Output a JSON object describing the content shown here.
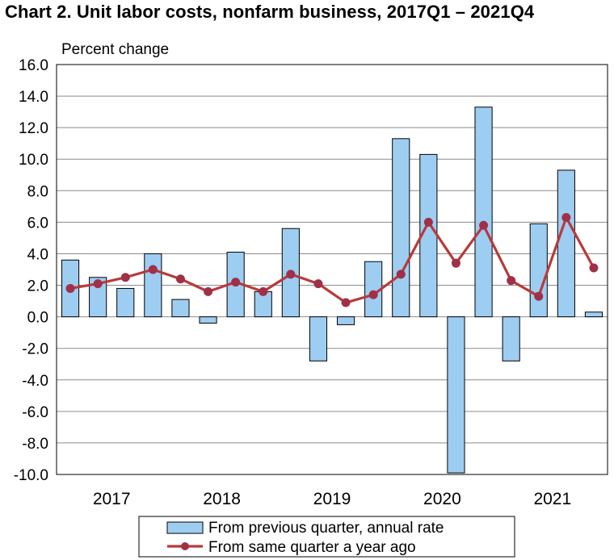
{
  "chart_data": {
    "type": "bar",
    "title": "Chart  2. Unit labor costs, nonfarm business, 2017Q1 – 2021Q4",
    "ylabel": "Percent change",
    "ylim": [
      -10,
      16
    ],
    "yticks": [
      "16.0",
      "14.0",
      "12.0",
      "10.0",
      "8.0",
      "6.0",
      "4.0",
      "2.0",
      "0.0",
      "-2.0",
      "-4.0",
      "-6.0",
      "-8.0",
      "-10.0"
    ],
    "ytick_values": [
      16,
      14,
      12,
      10,
      8,
      6,
      4,
      2,
      0,
      -2,
      -4,
      -6,
      -8,
      -10
    ],
    "year_labels": [
      "2017",
      "2018",
      "2019",
      "2020",
      "2021"
    ],
    "quarters": [
      "2017Q1",
      "2017Q2",
      "2017Q3",
      "2017Q4",
      "2018Q1",
      "2018Q2",
      "2018Q3",
      "2018Q4",
      "2019Q1",
      "2019Q2",
      "2019Q3",
      "2019Q4",
      "2020Q1",
      "2020Q2",
      "2020Q3",
      "2020Q4",
      "2021Q1",
      "2021Q2",
      "2021Q3",
      "2021Q4"
    ],
    "grid": "horizontal",
    "legend_position": "bottom",
    "series": [
      {
        "name": "From previous quarter, annual rate",
        "kind": "bar",
        "color": "#9ecdf2",
        "values": [
          3.6,
          2.5,
          1.8,
          4.0,
          1.1,
          -0.4,
          4.1,
          1.6,
          5.6,
          -2.8,
          -0.5,
          3.5,
          11.3,
          10.3,
          -9.9,
          13.3,
          -2.8,
          5.9,
          9.3,
          0.3
        ]
      },
      {
        "name": "From same quarter a year ago",
        "kind": "line",
        "color": "#b83a3a",
        "marker_color": "#a03048",
        "values": [
          1.8,
          2.1,
          2.5,
          3.0,
          2.4,
          1.6,
          2.2,
          1.6,
          2.7,
          2.1,
          0.9,
          1.4,
          2.7,
          6.0,
          3.4,
          5.8,
          2.3,
          1.3,
          6.3,
          3.1
        ]
      }
    ]
  }
}
